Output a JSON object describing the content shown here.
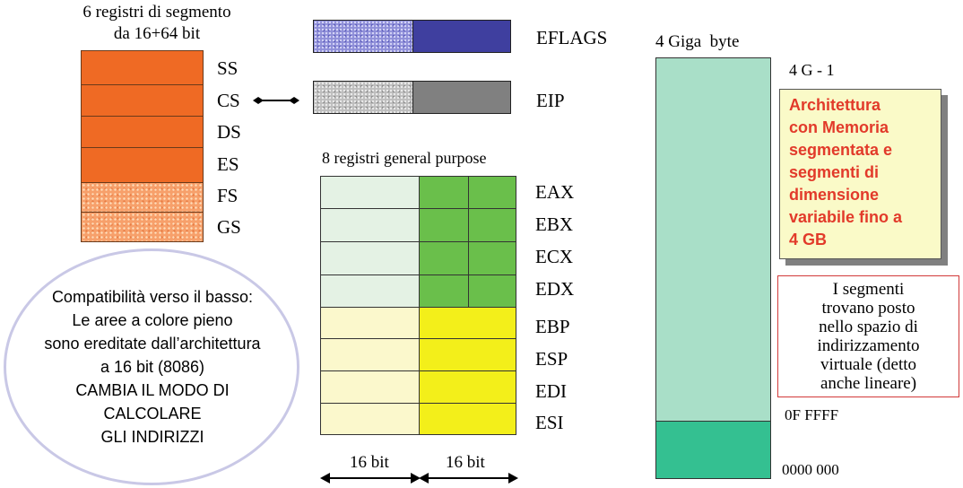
{
  "segment_registers": {
    "caption_line1": "6 registri di segmento",
    "caption_line2": "da 16+64 bit",
    "labels": [
      "SS",
      "CS",
      "DS",
      "ES",
      "FS",
      "GS"
    ]
  },
  "flags": {
    "eflags_label": "EFLAGS",
    "eip_label": "EIP"
  },
  "general_purpose": {
    "caption": "8 registri general purpose",
    "labels": [
      "EAX",
      "EBX",
      "ECX",
      "EDX",
      "EBP",
      "ESP",
      "EDI",
      "ESI"
    ],
    "bit_left": "16 bit",
    "bit_right": "16 bit"
  },
  "compatibility_note": {
    "lines": [
      "Compatibilità verso il basso:",
      "Le aree a colore pieno",
      "sono ereditate dall’architettura",
      "a 16 bit (8086)",
      "CAMBIA IL MODO DI",
      "CALCOLARE",
      "GLI INDIRIZZI"
    ]
  },
  "memory": {
    "title": "4 Giga  byte",
    "top_address": "4 G - 1",
    "mid_address": "0F FFFF",
    "bottom_address": "0000 000"
  },
  "architecture_note": {
    "lines": [
      "Architettura",
      "con Memoria",
      "segmentata e",
      "segmenti di",
      "dimensione",
      "variabile fino a",
      "4 GB"
    ]
  },
  "segments_note": {
    "lines": [
      "I segmenti",
      "trovano posto",
      "nello spazio di",
      "indirizzamento",
      "virtuale (detto",
      "anche lineare)"
    ]
  },
  "colors": {
    "segment_orange": "#ef6a24",
    "eflags_blue": "#3f3f9f",
    "eip_gray": "#808080",
    "gp_green": "#6abf4b",
    "gp_yellow": "#f3ef1a",
    "memory_teal": "#a9dfc8",
    "memory_green": "#34c091",
    "note_red_text": "#e23a2a"
  }
}
